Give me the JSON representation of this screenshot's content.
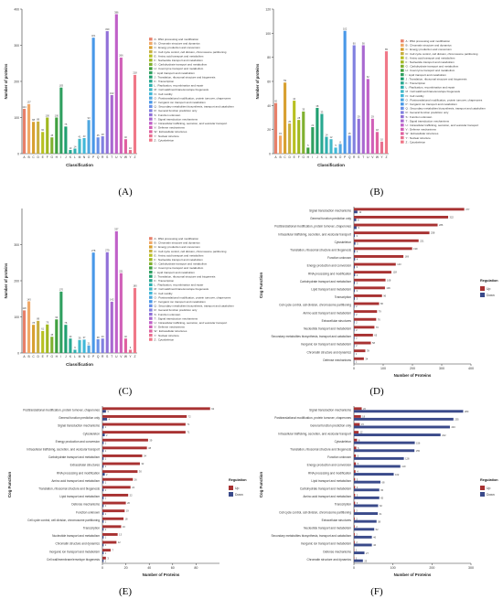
{
  "panels": [
    "(A)",
    "(B)",
    "(C)",
    "(D)",
    "(E)",
    "(F)"
  ],
  "cog_legend": [
    "A : RNA processing and modification",
    "B : Chromatin structure and dynamics",
    "C : Energy production and conversion",
    "D : Cell cycle control, cell division, chromosome partitioning",
    "E : Amino acid transport and metabolism",
    "F : Nucleotide transport and metabolism",
    "G : Carbohydrate transport and metabolism",
    "H : Coenzyme transport and metabolism",
    "I : Lipid transport and metabolism",
    "J : Translation, ribosomal structure and biogenesis",
    "K : Transcription",
    "L : Replication, recombination and repair",
    "M : Cell wall/membrane/envelope biogenesis",
    "N : Cell motility",
    "O : Posttranslational modification, protein turnover, chaperones",
    "P : Inorganic ion transport and metabolism",
    "Q : Secondary metabolites biosynthesis, transport and catabolism",
    "R : General function prediction only",
    "S : Function unknown",
    "T : Signal transduction mechanisms",
    "U : Intracellular trafficking, secretion, and vesicular transport",
    "V : Defense mechanisms",
    "W : Extracellular structures",
    "Y : Nuclear structure",
    "Z : Cytoskeleton"
  ],
  "cog_letters": [
    "A",
    "B",
    "C",
    "D",
    "E",
    "F",
    "G",
    "H",
    "I",
    "J",
    "K",
    "L",
    "M",
    "N",
    "O",
    "P",
    "Q",
    "R",
    "S",
    "T",
    "U",
    "V",
    "W",
    "Y",
    "Z"
  ],
  "cog_colors": [
    "#e8806a",
    "#f0a868",
    "#d8a030",
    "#c8b040",
    "#b8c020",
    "#a0b820",
    "#80b030",
    "#40a040",
    "#30a060",
    "#20a070",
    "#28a890",
    "#30b0b0",
    "#40b8c8",
    "#40b8d8",
    "#50a8e0",
    "#4898e8",
    "#6890e8",
    "#8080e0",
    "#9070d8",
    "#a868d0",
    "#c060c8",
    "#d060b8",
    "#e060a0",
    "#e87090",
    "#f07888"
  ],
  "chart_data": [
    {
      "panel": "(A)",
      "type": "bar",
      "xlabel": "Classification",
      "ylabel": "Number of proteins",
      "ylim": [
        0,
        400
      ],
      "yticks": [
        0,
        100,
        200,
        300,
        400
      ],
      "categories": [
        "A",
        "B",
        "C",
        "D",
        "E",
        "F",
        "G",
        "H",
        "I",
        "J",
        "K",
        "L",
        "M",
        "N",
        "O",
        "P",
        "Q",
        "R",
        "S",
        "T",
        "U",
        "V",
        "W",
        "Y",
        "Z"
      ],
      "values": [
        124,
        137,
        88,
        89,
        60,
        100,
        45,
        100,
        183,
        75,
        10,
        14,
        41,
        43,
        93,
        321,
        45,
        48,
        339,
        162,
        386,
        266,
        40,
        10,
        218
      ]
    },
    {
      "panel": "(B)",
      "type": "bar",
      "xlabel": "Classification",
      "ylabel": "Number of proteins",
      "ylim": [
        0,
        120
      ],
      "yticks": [
        0,
        20,
        40,
        60,
        80,
        100,
        120
      ],
      "categories": [
        "A",
        "B",
        "C",
        "D",
        "E",
        "F",
        "G",
        "H",
        "I",
        "J",
        "K",
        "L",
        "M",
        "N",
        "O",
        "P",
        "Q",
        "R",
        "S",
        "T",
        "U",
        "V",
        "W",
        "Y",
        "Z"
      ],
      "values": [
        42,
        15,
        59,
        25,
        44,
        28,
        35,
        5,
        22,
        38,
        33,
        14,
        12,
        5,
        8,
        102,
        15,
        90,
        29,
        90,
        62,
        29,
        18,
        10,
        85
      ]
    },
    {
      "panel": "(C)",
      "type": "bar",
      "xlabel": "Classification",
      "ylabel": "Number of proteins",
      "ylim": [
        0,
        400
      ],
      "yticks": [
        0,
        100,
        200,
        300
      ],
      "categories": [
        "A",
        "B",
        "C",
        "D",
        "E",
        "F",
        "G",
        "H",
        "I",
        "J",
        "K",
        "L",
        "M",
        "N",
        "O",
        "P",
        "Q",
        "R",
        "S",
        "T",
        "U",
        "V",
        "W",
        "Y",
        "Z"
      ],
      "values": [
        118,
        143,
        78,
        89,
        61,
        79,
        45,
        93,
        170,
        78,
        40,
        9,
        36,
        37,
        21,
        278,
        38,
        40,
        279,
        142,
        337,
        221,
        40,
        9,
        180
      ]
    },
    {
      "panel": "(D)",
      "type": "bar",
      "orientation": "horizontal",
      "xlabel": "Number of Proteins",
      "ylabel": "Cog Function",
      "xlim": [
        0,
        400
      ],
      "xticks": [
        0,
        100,
        200,
        300,
        400
      ],
      "legend_title": "Regulation",
      "legend_placement": "right",
      "categories": [
        "Signal transduction mechanisms",
        "General function prediction only",
        "Posttranslational modification, protein turnover, chaperones",
        "Intracellular trafficking, secretion, and vesicular transport",
        "Cytoskeleton",
        "Translation, ribosomal structure and biogenesis",
        "Function unknown",
        "Energy production and conversion",
        "RNA processing and modification",
        "Carbohydrate transport and metabolism",
        "Lipid transport and metabolism",
        "Transcription",
        "Cell cycle control, cell division, chromosome partitioning",
        "Amino acid transport and metabolism",
        "Extracellular structures",
        "Nucleotide transport and metabolism",
        "Secondary metabolites biosynthesis, transport and catabolism",
        "Inorganic ion transport and metabolism",
        "Chromatin structure and dynamics",
        "Defense mechanisms"
      ],
      "series": [
        {
          "name": "Up",
          "color": "#a83232",
          "values": [
            377,
            322,
            286,
            258,
            221,
            199,
            169,
            143,
            128,
            108,
            106,
            96,
            86,
            79,
            76,
            70,
            65,
            58,
            39,
            34
          ]
        },
        {
          "name": "Down",
          "color": "#3a4a8a",
          "values": [
            12,
            8,
            9,
            3,
            5,
            4,
            4,
            3,
            4,
            3,
            3,
            3,
            2,
            2,
            2,
            2,
            2,
            2,
            1,
            1
          ]
        }
      ]
    },
    {
      "panel": "(E)",
      "type": "bar",
      "orientation": "horizontal",
      "xlabel": "Number of Proteins",
      "ylabel": "Cog Function",
      "xlim": [
        0,
        100
      ],
      "xticks": [
        0,
        20,
        40,
        60,
        80
      ],
      "legend_title": "Regulation",
      "legend_placement": "right",
      "categories": [
        "Posttranslational modification, protein turnover, chaperones",
        "General function prediction only",
        "Signal transduction mechanisms",
        "Cytoskeleton",
        "Energy production and conversion",
        "Intracellular trafficking, secretion, and vesicular transport",
        "Carbohydrate transport and metabolism",
        "Extracellular structures",
        "RNA processing and modification",
        "Amino acid transport and metabolism",
        "Translation, ribosomal structure and biogenesis",
        "Lipid transport and metabolism",
        "Defense mechanisms",
        "Function unknown",
        "Cell cycle control, cell division, chromosome partitioning",
        "Transcription",
        "Nucleotide transport and metabolism",
        "Chromatin structure and dynamics",
        "Inorganic ion transport and metabolism",
        "Cell wall/membrane/envelope biogenesis"
      ],
      "series": [
        {
          "name": "Up",
          "color": "#a83232",
          "values": [
            92,
            72,
            71,
            71,
            39,
            38,
            34,
            32,
            30,
            26,
            24,
            22,
            20,
            19,
            18,
            16,
            13,
            12,
            7,
            3
          ]
        },
        {
          "name": "Down",
          "color": "#3a4a8a",
          "values": [
            3,
            4,
            1,
            2,
            1,
            1,
            1,
            1,
            2,
            1,
            1,
            1,
            1,
            1,
            1,
            1,
            1,
            1,
            1,
            1
          ]
        }
      ]
    },
    {
      "panel": "(F)",
      "type": "bar",
      "orientation": "horizontal",
      "xlabel": "Number of Proteins",
      "ylabel": "Cog Function",
      "xlim": [
        0,
        300
      ],
      "xticks": [
        0,
        100,
        200,
        300
      ],
      "legend_title": "Regulation",
      "legend_placement": "right",
      "categories": [
        "Signal transduction mechanisms",
        "Posttranslational modification, protein turnover, chaperones",
        "General function prediction only",
        "Intracellular trafficking, secretion, and vesicular transport",
        "Cytoskeleton",
        "Translation, ribosomal structure and biogenesis",
        "Function unknown",
        "Energy production and conversion",
        "RNA processing and modification",
        "Lipid transport and metabolism",
        "Carbohydrate transport and metabolism",
        "Amino acid transport and metabolism",
        "Transcription",
        "Cell cycle control, cell division, chromosome partitioning",
        "Extracellular structures",
        "Nucleotide transport and metabolism",
        "Secondary metabolites biosynthesis, transport and catabolism",
        "Inorganic ion transport and metabolism",
        "Defense mechanisms",
        "Chromatin structure and dynamics"
      ],
      "series": [
        {
          "name": "Up",
          "color": "#a83232",
          "values": [
            20,
            18,
            15,
            12,
            8,
            6,
            5,
            5,
            4,
            3,
            3,
            3,
            3,
            2,
            2,
            2,
            2,
            2,
            1,
            1
          ]
        },
        {
          "name": "Down",
          "color": "#3a4a8a",
          "values": [
            280,
            255,
            246,
            222,
            156,
            155,
            128,
            119,
            102,
            68,
            65,
            65,
            62,
            61,
            58,
            52,
            46,
            46,
            27,
            23
          ]
        }
      ]
    }
  ]
}
